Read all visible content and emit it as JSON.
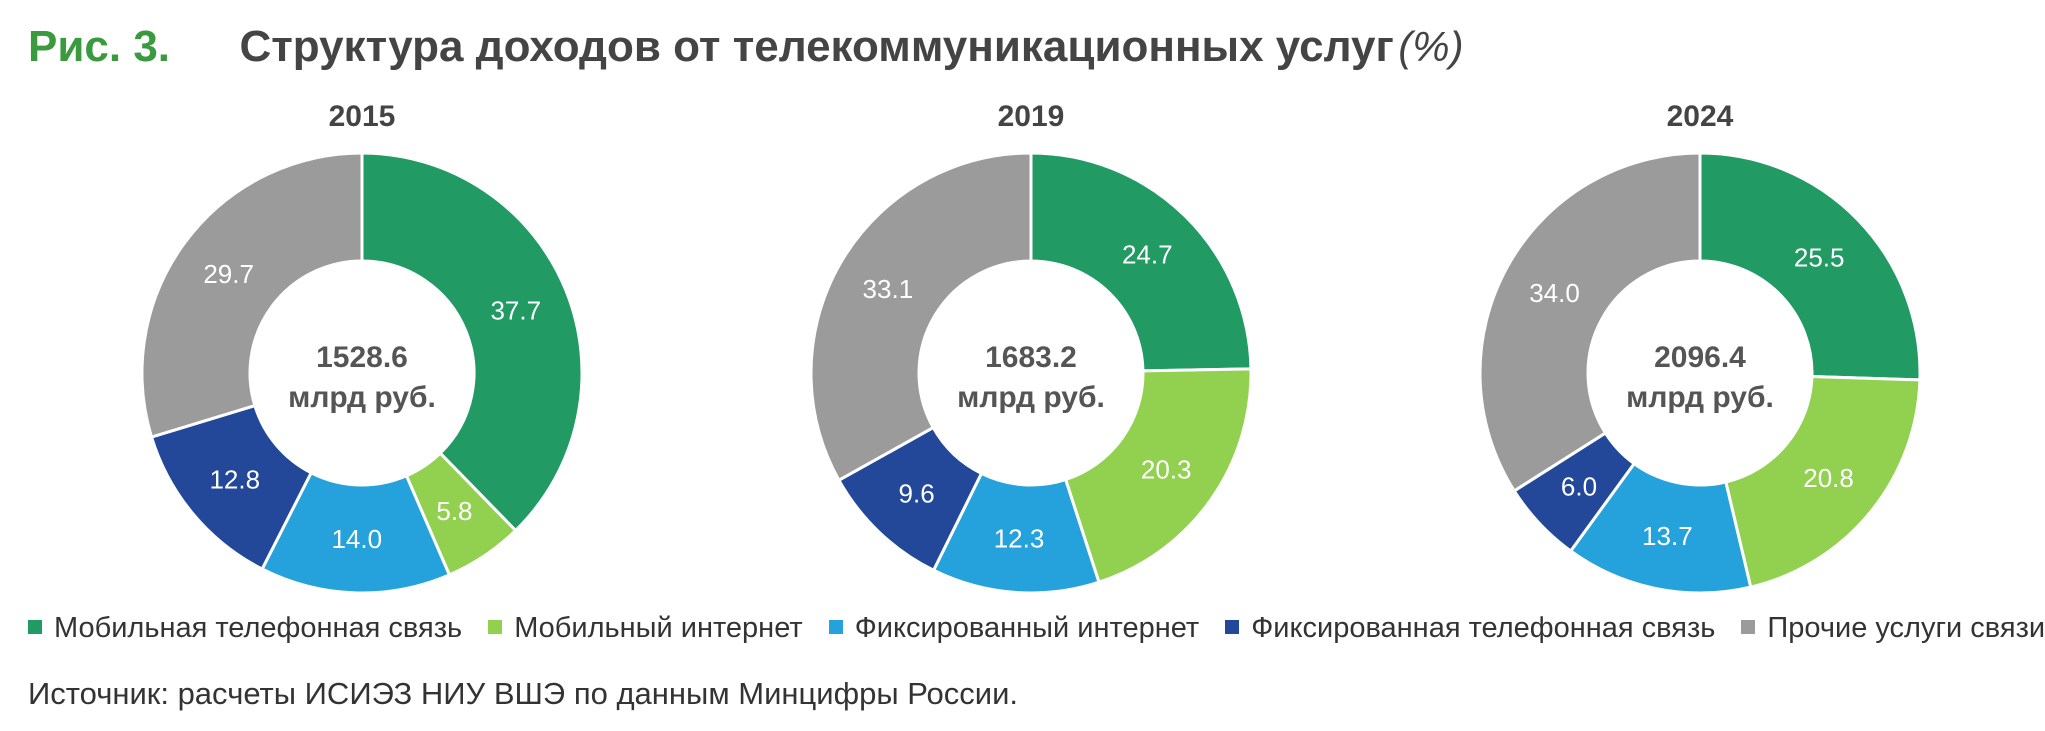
{
  "figure": {
    "number": "Рис. 3.",
    "title": "Структура доходов от телекоммуникационных услуг",
    "unit": "(%)"
  },
  "legend": {
    "items": [
      {
        "label": "Мобильная телефонная связь",
        "color": "#219a63"
      },
      {
        "label": "Мобильный интернет",
        "color": "#92d050"
      },
      {
        "label": "Фиксированный интернет",
        "color": "#25a2dc"
      },
      {
        "label": "Фиксированная телефонная связь",
        "color": "#23489a"
      },
      {
        "label": "Прочие услуги связи",
        "color": "#9b9b9b"
      }
    ]
  },
  "source": "Источник: расчеты ИСИЭЗ НИУ ВШЭ по данным Минцифры России.",
  "chart_data": [
    {
      "type": "pie",
      "title": "2015",
      "center_value": "1528.6",
      "center_unit": "млрд руб.",
      "categories": [
        "Мобильная телефонная связь",
        "Мобильный интернет",
        "Фиксированный интернет",
        "Фиксированная телефонная связь",
        "Прочие услуги связи"
      ],
      "values": [
        37.7,
        5.8,
        14.0,
        12.8,
        29.7
      ],
      "labels": [
        "37.7",
        "5.8",
        "14.0",
        "12.8",
        "29.7"
      ]
    },
    {
      "type": "pie",
      "title": "2019",
      "center_value": "1683.2",
      "center_unit": "млрд руб.",
      "categories": [
        "Мобильная телефонная связь",
        "Мобильный интернет",
        "Фиксированный интернет",
        "Фиксированная телефонная связь",
        "Прочие услуги связи"
      ],
      "values": [
        24.7,
        20.3,
        12.3,
        9.6,
        33.1
      ],
      "labels": [
        "24.7",
        "20.3",
        "12.3",
        "9.6",
        "33.1"
      ]
    },
    {
      "type": "pie",
      "title": "2024",
      "center_value": "2096.4",
      "center_unit": "млрд руб.",
      "categories": [
        "Мобильная телефонная связь",
        "Мобильный интернет",
        "Фиксированный интернет",
        "Фиксированная телефонная связь",
        "Прочие услуги связи"
      ],
      "values": [
        25.5,
        20.8,
        13.7,
        6.0,
        34.0
      ],
      "labels": [
        "25.5",
        "20.8",
        "13.7",
        "6.0",
        "34.0"
      ]
    }
  ]
}
